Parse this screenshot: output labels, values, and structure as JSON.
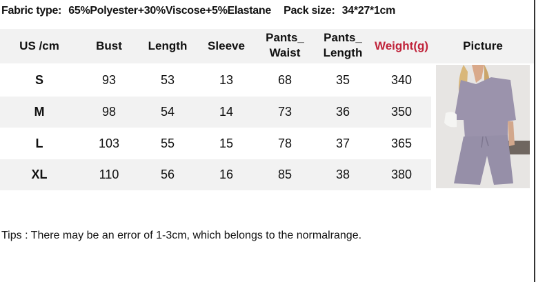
{
  "info": {
    "fabric_label": "Fabric type:",
    "fabric_value": "65%Polyester+30%Viscose+5%Elastane",
    "pack_label": "Pack size:",
    "pack_value": "34*27*1cm"
  },
  "table": {
    "headers": [
      "US /cm",
      "Bust",
      "Length",
      "Sleeve",
      "Pants_ Waist",
      "Pants_ Length",
      "Weight(g)",
      "Picture"
    ],
    "header_lines": {
      "pants_waist": [
        "Pants_",
        "Waist"
      ],
      "pants_length": [
        "Pants_",
        "Length"
      ]
    },
    "accent_color": "#c0233a",
    "rows": [
      [
        "S",
        "93",
        "53",
        "13",
        "68",
        "35",
        "340"
      ],
      [
        "M",
        "98",
        "54",
        "14",
        "73",
        "36",
        "350"
      ],
      [
        "L",
        "103",
        "55",
        "15",
        "78",
        "37",
        "365"
      ],
      [
        "XL",
        "110",
        "56",
        "16",
        "85",
        "38",
        "380"
      ]
    ]
  },
  "picture": {
    "icon": "model-photo-lavender-ribbed-tshirt-shorts-set"
  },
  "tips": "Tips : There may be an error of 1-3cm, which belongs to the normalrange."
}
